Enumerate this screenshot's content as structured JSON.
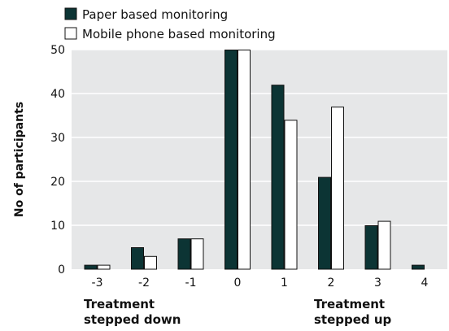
{
  "chart_data": {
    "type": "bar",
    "categories": [
      "-3",
      "-2",
      "-1",
      "0",
      "1",
      "2",
      "3",
      "4"
    ],
    "series": [
      {
        "name": "Paper based monitoring",
        "values": [
          1,
          5,
          7,
          50,
          42,
          21,
          10,
          1
        ]
      },
      {
        "name": "Mobile phone based monitoring",
        "values": [
          1,
          3,
          7,
          50,
          34,
          37,
          11,
          0
        ]
      }
    ],
    "title": "",
    "xlabel": "",
    "ylabel": "No of participants",
    "ylim": [
      0,
      50
    ],
    "yticks": [
      "0",
      "10",
      "20",
      "30",
      "40",
      "50"
    ],
    "grid": true,
    "legend_position": "top-left",
    "annotations": {
      "down_line1": "Treatment",
      "down_line2": "stepped down",
      "up_line1": "Treatment",
      "up_line2": "stepped up"
    },
    "colors": {
      "paper": "#0c3434",
      "mobile": "#ffffff",
      "plot_bg": "#e6e7e8",
      "grid": "#ffffff",
      "bar_stroke": "#111111"
    }
  }
}
